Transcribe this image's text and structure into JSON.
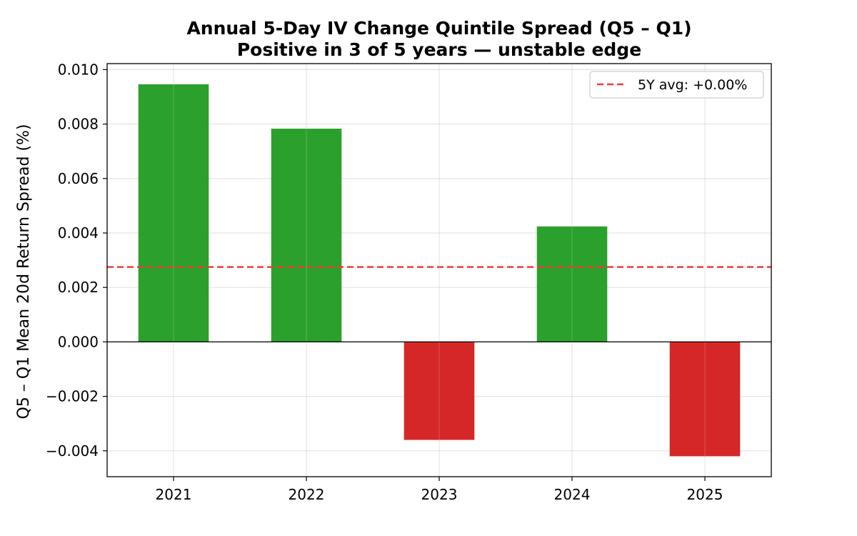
{
  "chart_data": {
    "type": "bar",
    "title": "Annual 5-Day IV Change Quintile Spread (Q5 – Q1)",
    "subtitle": "Positive in 3 of 5 years — unstable edge",
    "xlabel": "",
    "ylabel": "Q5 – Q1 Mean 20d Return Spread (%)",
    "categories": [
      "2021",
      "2022",
      "2023",
      "2024",
      "2025"
    ],
    "values": [
      0.00946,
      0.00783,
      -0.0036,
      0.00424,
      -0.0042
    ],
    "ylim": [
      -0.00495,
      0.01022
    ],
    "yticks": [
      -0.004,
      -0.002,
      0.0,
      0.002,
      0.004,
      0.006,
      0.008,
      0.01
    ],
    "ytick_labels": [
      "−0.004",
      "−0.002",
      "0.000",
      "0.002",
      "0.004",
      "0.006",
      "0.008",
      "0.010"
    ],
    "average_line": {
      "value": 0.00275,
      "label": "5Y avg: +0.00%",
      "color": "#f03b3b"
    },
    "positive_color": "#2ca02c",
    "negative_color": "#d62728",
    "grid": true,
    "legend_position": "top-right"
  }
}
